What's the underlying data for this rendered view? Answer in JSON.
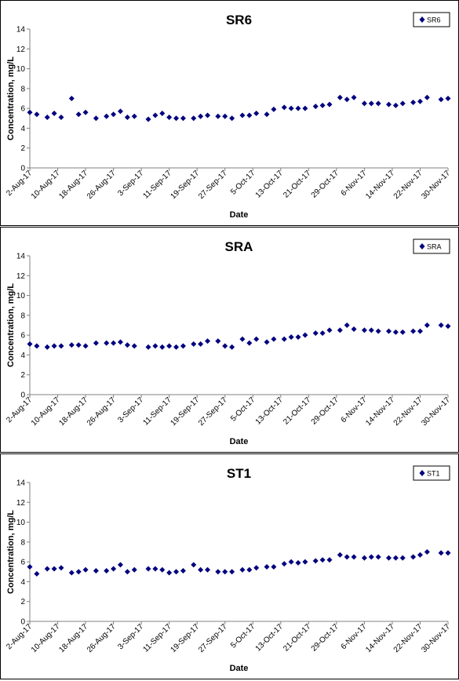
{
  "colors": {
    "marker": "#00007F",
    "axis": "#808080",
    "frame": "#000000"
  },
  "shared": {
    "xlabel": "Date",
    "ylabel": "Concentration, mg/L",
    "ylim": [
      0,
      14
    ],
    "yticks": [
      0,
      2,
      4,
      6,
      8,
      10,
      12,
      14
    ],
    "xticks": [
      "2-Aug-17",
      "10-Aug-17",
      "18-Aug-17",
      "26-Aug-17",
      "3-Sep-17",
      "11-Sep-17",
      "19-Sep-17",
      "27-Sep-17",
      "5-Oct-17",
      "13-Oct-17",
      "21-Oct-17",
      "29-Oct-17",
      "6-Nov-17",
      "14-Nov-17",
      "22-Nov-17",
      "30-Nov-17"
    ]
  },
  "chart_data": [
    {
      "type": "scatter",
      "title": "SR6",
      "xlabel": "Date",
      "ylabel": "Concentration, mg/L",
      "ylim": [
        0,
        14
      ],
      "xlim": [
        "2017-08-02",
        "2017-11-30"
      ],
      "legend": "top-right",
      "series": [
        {
          "name": "SR6",
          "points": [
            [
              "2017-08-02",
              5.6
            ],
            [
              "2017-08-04",
              5.4
            ],
            [
              "2017-08-07",
              5.1
            ],
            [
              "2017-08-09",
              5.5
            ],
            [
              "2017-08-11",
              5.1
            ],
            [
              "2017-08-14",
              7.0
            ],
            [
              "2017-08-16",
              5.4
            ],
            [
              "2017-08-18",
              5.6
            ],
            [
              "2017-08-21",
              5.0
            ],
            [
              "2017-08-24",
              5.2
            ],
            [
              "2017-08-26",
              5.4
            ],
            [
              "2017-08-28",
              5.7
            ],
            [
              "2017-08-30",
              5.1
            ],
            [
              "2017-09-01",
              5.2
            ],
            [
              "2017-09-05",
              4.9
            ],
            [
              "2017-09-07",
              5.3
            ],
            [
              "2017-09-09",
              5.5
            ],
            [
              "2017-09-11",
              5.1
            ],
            [
              "2017-09-13",
              5.0
            ],
            [
              "2017-09-15",
              5.0
            ],
            [
              "2017-09-18",
              5.0
            ],
            [
              "2017-09-20",
              5.2
            ],
            [
              "2017-09-22",
              5.3
            ],
            [
              "2017-09-25",
              5.2
            ],
            [
              "2017-09-27",
              5.2
            ],
            [
              "2017-09-29",
              5.0
            ],
            [
              "2017-10-02",
              5.3
            ],
            [
              "2017-10-04",
              5.3
            ],
            [
              "2017-10-06",
              5.5
            ],
            [
              "2017-10-09",
              5.4
            ],
            [
              "2017-10-11",
              5.9
            ],
            [
              "2017-10-14",
              6.1
            ],
            [
              "2017-10-16",
              6.0
            ],
            [
              "2017-10-18",
              6.0
            ],
            [
              "2017-10-20",
              6.0
            ],
            [
              "2017-10-23",
              6.2
            ],
            [
              "2017-10-25",
              6.3
            ],
            [
              "2017-10-27",
              6.4
            ],
            [
              "2017-10-30",
              7.1
            ],
            [
              "2017-11-01",
              6.9
            ],
            [
              "2017-11-03",
              7.1
            ],
            [
              "2017-11-06",
              6.5
            ],
            [
              "2017-11-08",
              6.5
            ],
            [
              "2017-11-10",
              6.5
            ],
            [
              "2017-11-13",
              6.4
            ],
            [
              "2017-11-15",
              6.3
            ],
            [
              "2017-11-17",
              6.5
            ],
            [
              "2017-11-20",
              6.6
            ],
            [
              "2017-11-22",
              6.7
            ],
            [
              "2017-11-24",
              7.1
            ],
            [
              "2017-11-28",
              6.9
            ],
            [
              "2017-11-30",
              7.0
            ]
          ]
        }
      ]
    },
    {
      "type": "scatter",
      "title": "SRA",
      "xlabel": "Date",
      "ylabel": "Concentration, mg/L",
      "ylim": [
        0,
        14
      ],
      "xlim": [
        "2017-08-02",
        "2017-11-30"
      ],
      "legend": "top-right",
      "series": [
        {
          "name": "SRA",
          "points": [
            [
              "2017-08-02",
              5.1
            ],
            [
              "2017-08-04",
              4.9
            ],
            [
              "2017-08-07",
              4.8
            ],
            [
              "2017-08-09",
              4.9
            ],
            [
              "2017-08-11",
              4.9
            ],
            [
              "2017-08-14",
              5.0
            ],
            [
              "2017-08-16",
              5.0
            ],
            [
              "2017-08-18",
              4.9
            ],
            [
              "2017-08-21",
              5.2
            ],
            [
              "2017-08-24",
              5.2
            ],
            [
              "2017-08-26",
              5.2
            ],
            [
              "2017-08-28",
              5.3
            ],
            [
              "2017-08-30",
              5.0
            ],
            [
              "2017-09-01",
              4.9
            ],
            [
              "2017-09-05",
              4.8
            ],
            [
              "2017-09-07",
              4.9
            ],
            [
              "2017-09-09",
              4.8
            ],
            [
              "2017-09-11",
              4.9
            ],
            [
              "2017-09-13",
              4.8
            ],
            [
              "2017-09-15",
              4.9
            ],
            [
              "2017-09-18",
              5.1
            ],
            [
              "2017-09-20",
              5.1
            ],
            [
              "2017-09-22",
              5.4
            ],
            [
              "2017-09-25",
              5.4
            ],
            [
              "2017-09-27",
              4.9
            ],
            [
              "2017-09-29",
              4.8
            ],
            [
              "2017-10-02",
              5.6
            ],
            [
              "2017-10-04",
              5.2
            ],
            [
              "2017-10-06",
              5.6
            ],
            [
              "2017-10-09",
              5.3
            ],
            [
              "2017-10-11",
              5.6
            ],
            [
              "2017-10-14",
              5.6
            ],
            [
              "2017-10-16",
              5.8
            ],
            [
              "2017-10-18",
              5.8
            ],
            [
              "2017-10-20",
              6.0
            ],
            [
              "2017-10-23",
              6.2
            ],
            [
              "2017-10-25",
              6.2
            ],
            [
              "2017-10-27",
              6.5
            ],
            [
              "2017-10-30",
              6.5
            ],
            [
              "2017-11-01",
              7.0
            ],
            [
              "2017-11-03",
              6.6
            ],
            [
              "2017-11-06",
              6.5
            ],
            [
              "2017-11-08",
              6.5
            ],
            [
              "2017-11-10",
              6.4
            ],
            [
              "2017-11-13",
              6.4
            ],
            [
              "2017-11-15",
              6.3
            ],
            [
              "2017-11-17",
              6.3
            ],
            [
              "2017-11-20",
              6.4
            ],
            [
              "2017-11-22",
              6.4
            ],
            [
              "2017-11-24",
              7.0
            ],
            [
              "2017-11-28",
              7.0
            ],
            [
              "2017-11-30",
              6.9
            ]
          ]
        }
      ]
    },
    {
      "type": "scatter",
      "title": "ST1",
      "xlabel": "Date",
      "ylabel": "Concentration, mg/L",
      "ylim": [
        0,
        14
      ],
      "xlim": [
        "2017-08-02",
        "2017-11-30"
      ],
      "legend": "top-right",
      "series": [
        {
          "name": "ST1",
          "points": [
            [
              "2017-08-02",
              5.5
            ],
            [
              "2017-08-04",
              4.8
            ],
            [
              "2017-08-07",
              5.3
            ],
            [
              "2017-08-09",
              5.3
            ],
            [
              "2017-08-11",
              5.4
            ],
            [
              "2017-08-14",
              4.9
            ],
            [
              "2017-08-16",
              5.0
            ],
            [
              "2017-08-18",
              5.2
            ],
            [
              "2017-08-21",
              5.1
            ],
            [
              "2017-08-24",
              5.1
            ],
            [
              "2017-08-26",
              5.3
            ],
            [
              "2017-08-28",
              5.7
            ],
            [
              "2017-08-30",
              5.0
            ],
            [
              "2017-09-01",
              5.2
            ],
            [
              "2017-09-05",
              5.3
            ],
            [
              "2017-09-07",
              5.3
            ],
            [
              "2017-09-09",
              5.2
            ],
            [
              "2017-09-11",
              4.9
            ],
            [
              "2017-09-13",
              5.0
            ],
            [
              "2017-09-15",
              5.1
            ],
            [
              "2017-09-18",
              5.7
            ],
            [
              "2017-09-20",
              5.2
            ],
            [
              "2017-09-22",
              5.2
            ],
            [
              "2017-09-25",
              5.0
            ],
            [
              "2017-09-27",
              5.0
            ],
            [
              "2017-09-29",
              5.0
            ],
            [
              "2017-10-02",
              5.2
            ],
            [
              "2017-10-04",
              5.2
            ],
            [
              "2017-10-06",
              5.4
            ],
            [
              "2017-10-09",
              5.5
            ],
            [
              "2017-10-11",
              5.5
            ],
            [
              "2017-10-14",
              5.8
            ],
            [
              "2017-10-16",
              6.0
            ],
            [
              "2017-10-18",
              5.9
            ],
            [
              "2017-10-20",
              6.0
            ],
            [
              "2017-10-23",
              6.1
            ],
            [
              "2017-10-25",
              6.2
            ],
            [
              "2017-10-27",
              6.2
            ],
            [
              "2017-10-30",
              6.7
            ],
            [
              "2017-11-01",
              6.5
            ],
            [
              "2017-11-03",
              6.5
            ],
            [
              "2017-11-06",
              6.4
            ],
            [
              "2017-11-08",
              6.5
            ],
            [
              "2017-11-10",
              6.5
            ],
            [
              "2017-11-13",
              6.4
            ],
            [
              "2017-11-15",
              6.4
            ],
            [
              "2017-11-17",
              6.4
            ],
            [
              "2017-11-20",
              6.5
            ],
            [
              "2017-11-22",
              6.7
            ],
            [
              "2017-11-24",
              7.0
            ],
            [
              "2017-11-28",
              6.9
            ],
            [
              "2017-11-30",
              6.9
            ]
          ]
        }
      ]
    }
  ]
}
